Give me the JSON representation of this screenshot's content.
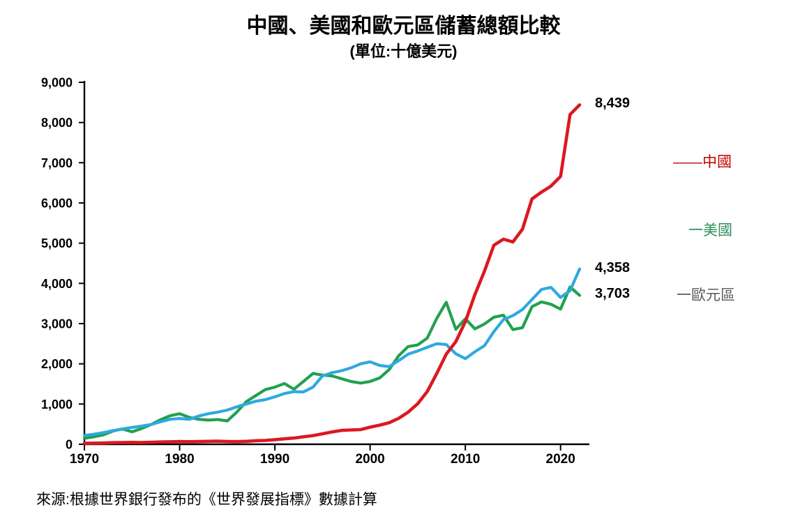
{
  "title": "中國、美國和歐元區儲蓄總額比較",
  "subtitle": "(單位:十億美元)",
  "source": "來源:根據世界銀行發布的《世界發展指標》數據計算",
  "legend": [
    {
      "label": "——中國",
      "color": "#C00000"
    },
    {
      "label": "一美國",
      "color": "#2E8F5B"
    },
    {
      "label": "一歐元區",
      "color": "#595959"
    }
  ],
  "chart_data": {
    "type": "line",
    "title": "中國、美國和歐元區儲蓄總額比較",
    "subtitle": "(單位:十億美元)",
    "unit": "十億美元",
    "grid": false,
    "legend_position": "right",
    "xlim": [
      1970,
      2023
    ],
    "ylim": [
      0,
      9000
    ],
    "ytick_step": 1000,
    "y_tick_labels": [
      "0",
      "1,000",
      "2,000",
      "3,000",
      "4,000",
      "5,000",
      "6,000",
      "7,000",
      "8,000",
      "9,000"
    ],
    "x_ticks": [
      1970,
      1980,
      1990,
      2000,
      2010,
      2020
    ],
    "x_tick_labels": [
      "1970",
      "1980",
      "1990",
      "2000",
      "2010",
      "2020"
    ],
    "x": [
      1970,
      1971,
      1972,
      1973,
      1974,
      1975,
      1976,
      1977,
      1978,
      1979,
      1980,
      1981,
      1982,
      1983,
      1984,
      1985,
      1986,
      1987,
      1988,
      1989,
      1990,
      1991,
      1992,
      1993,
      1994,
      1995,
      1996,
      1997,
      1998,
      1999,
      2000,
      2001,
      2002,
      2003,
      2004,
      2005,
      2006,
      2007,
      2008,
      2009,
      2010,
      2011,
      2012,
      2013,
      2014,
      2015,
      2016,
      2017,
      2018,
      2019,
      2020,
      2021,
      2022
    ],
    "series": [
      {
        "name": "中國",
        "color": "#DC1820",
        "end_label": "8,439",
        "end_value": 8439,
        "values": [
          25,
          28,
          32,
          40,
          44,
          47,
          44,
          49,
          57,
          62,
          68,
          64,
          68,
          72,
          76,
          70,
          66,
          73,
          88,
          95,
          115,
          135,
          155,
          185,
          215,
          260,
          305,
          345,
          355,
          365,
          425,
          475,
          535,
          645,
          800,
          1010,
          1310,
          1760,
          2240,
          2550,
          3050,
          3720,
          4300,
          4950,
          5100,
          5030,
          5350,
          6100,
          6270,
          6420,
          6660,
          8200,
          8439
        ]
      },
      {
        "name": "美國",
        "color": "#21A14F",
        "end_label": "3,703",
        "end_value": 3703,
        "values": [
          150,
          185,
          235,
          330,
          380,
          310,
          390,
          490,
          610,
          710,
          760,
          670,
          620,
          600,
          615,
          580,
          800,
          1060,
          1210,
          1360,
          1420,
          1510,
          1370,
          1560,
          1760,
          1720,
          1700,
          1630,
          1560,
          1520,
          1560,
          1650,
          1855,
          2200,
          2430,
          2470,
          2640,
          3130,
          3530,
          2860,
          3120,
          2870,
          2990,
          3160,
          3210,
          2850,
          2900,
          3420,
          3540,
          3480,
          3360,
          3910,
          3703
        ]
      },
      {
        "name": "歐元區",
        "color": "#2FA9DF",
        "end_label": "4,358",
        "end_value": 4358,
        "values": [
          220,
          250,
          290,
          340,
          380,
          420,
          450,
          490,
          560,
          620,
          640,
          620,
          700,
          760,
          800,
          850,
          930,
          1000,
          1070,
          1110,
          1180,
          1260,
          1310,
          1300,
          1420,
          1700,
          1780,
          1830,
          1900,
          2000,
          2050,
          1960,
          1930,
          2080,
          2240,
          2320,
          2410,
          2500,
          2480,
          2250,
          2130,
          2300,
          2450,
          2800,
          3100,
          3200,
          3350,
          3600,
          3850,
          3900,
          3650,
          3820,
          4358
        ]
      }
    ]
  }
}
